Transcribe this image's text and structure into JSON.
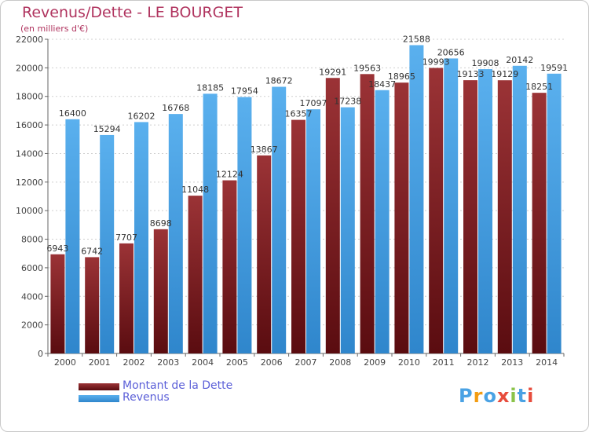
{
  "header": {
    "title": "Revenus/Dette - LE BOURGET",
    "subtitle": "(en milliers d'€)"
  },
  "colors": {
    "dette": "#7b1f23",
    "revenus": "#4aa2e4",
    "title": "#b0345f",
    "legend_text": "#5b5fd8"
  },
  "legend": {
    "items": [
      {
        "label": "Montant de la Dette",
        "color": "#7b1f23"
      },
      {
        "label": "Revenus",
        "color": "#4aa2e4"
      }
    ]
  },
  "logo": {
    "letters": [
      "P",
      "r",
      "o",
      "x",
      "i",
      "t",
      "i"
    ],
    "colors": [
      "#4aa2e4",
      "#f39c12",
      "#4aa2e4",
      "#e74c3c",
      "#8bc34a",
      "#4aa2e4",
      "#e74c3c"
    ]
  },
  "chart_data": {
    "type": "bar",
    "title": "Revenus/Dette - LE BOURGET",
    "subtitle": "(en milliers d'€)",
    "categories": [
      "2000",
      "2001",
      "2002",
      "2003",
      "2004",
      "2005",
      "2006",
      "2007",
      "2008",
      "2009",
      "2010",
      "2011",
      "2012",
      "2013",
      "2014"
    ],
    "series": [
      {
        "name": "Montant de la Dette",
        "values": [
          6943,
          6742,
          7707,
          8698,
          11048,
          12124,
          13867,
          16357,
          19291,
          19563,
          18965,
          19993,
          19133,
          19129,
          18251
        ],
        "labels": [
          "6943",
          "6742",
          "7707",
          "8698",
          "11048",
          "12124",
          "13867",
          "16357",
          "19291",
          "19563",
          "18965",
          "19993",
          "19133",
          "19129",
          "18251"
        ]
      },
      {
        "name": "Revenus",
        "values": [
          16400,
          15294,
          16202,
          16768,
          18185,
          17954,
          18672,
          17097,
          17238,
          18437,
          21588,
          20656,
          19908,
          20142,
          19591
        ],
        "labels": [
          "16400",
          "15294",
          "16202",
          "16768",
          "18185",
          "17954",
          "18672",
          "17097",
          "17238",
          "18437",
          "21588",
          "20656",
          "19908",
          "20142",
          "19591"
        ]
      }
    ],
    "xlabel": "",
    "ylabel": "",
    "ylim": [
      0,
      22000
    ],
    "yticks": [
      0,
      2000,
      4000,
      6000,
      8000,
      10000,
      12000,
      14000,
      16000,
      18000,
      20000,
      22000
    ],
    "grid": true,
    "legend": "bottom-left"
  }
}
